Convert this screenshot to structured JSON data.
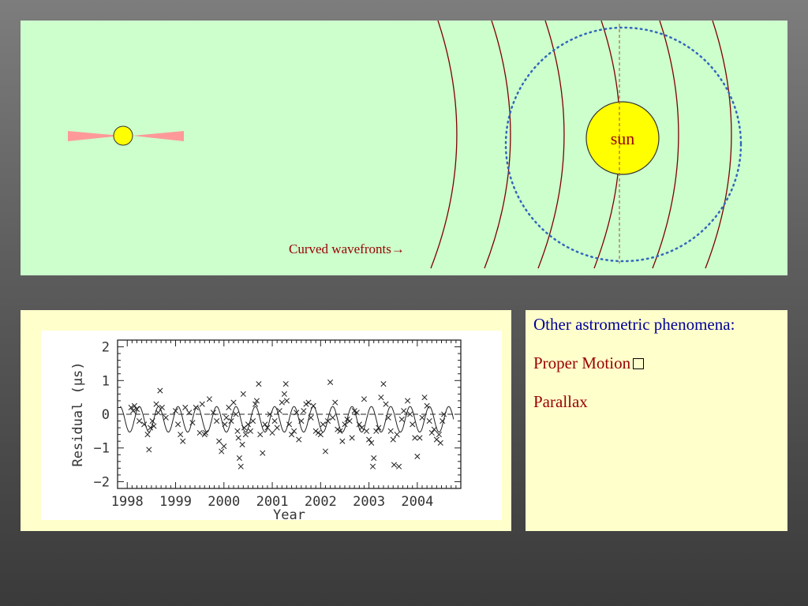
{
  "top_panel": {
    "wavefront_label": "Curved wavefronts→",
    "sun_label": "sun",
    "colors": {
      "background": "#ccffcc",
      "wavefronts": "#800000",
      "sun_fill": "#ffff00",
      "orbit": "#3366bb",
      "source_fans": "#ff9999",
      "source_fill": "#ffff00"
    }
  },
  "plot": {
    "ylabel": "Residual (μs)",
    "xlabel": "Year",
    "x_ticks": [
      "1998",
      "1999",
      "2000",
      "2001",
      "2002",
      "2003",
      "2004"
    ],
    "y_ticks": [
      "2",
      "1",
      "0",
      "−1",
      "−2"
    ]
  },
  "right_panel": {
    "heading": "Other astrometric phenomena:",
    "items": [
      "Proper Motion",
      "Parallax"
    ]
  },
  "chart_data": {
    "type": "scatter",
    "xlabel": "Year",
    "ylabel": "Residual (μs)",
    "xlim": [
      1997.8,
      2004.9
    ],
    "ylim": [
      -2.2,
      2.2
    ],
    "x_ticks": [
      1998,
      1999,
      2000,
      2001,
      2002,
      2003,
      2004
    ],
    "y_ticks": [
      2,
      1,
      0,
      -1,
      -2
    ],
    "grid": false,
    "reference_line_y": 0,
    "series": [
      {
        "marker": "x",
        "points": [
          [
            1998.08,
            0.2
          ],
          [
            1998.12,
            0.1
          ],
          [
            1998.15,
            0.25
          ],
          [
            1998.2,
            0.15
          ],
          [
            1998.25,
            -0.2
          ],
          [
            1998.35,
            -0.3
          ],
          [
            1998.42,
            -0.6
          ],
          [
            1998.45,
            -1.05
          ],
          [
            1998.48,
            -0.4
          ],
          [
            1998.52,
            -0.2
          ],
          [
            1998.55,
            -0.35
          ],
          [
            1998.6,
            0.3
          ],
          [
            1998.64,
            0.05
          ],
          [
            1998.68,
            0.7
          ],
          [
            1998.72,
            0.2
          ],
          [
            1998.8,
            -0.1
          ],
          [
            1999.0,
            0.1
          ],
          [
            1999.05,
            -0.3
          ],
          [
            1999.1,
            -0.6
          ],
          [
            1999.15,
            -0.8
          ],
          [
            1999.2,
            0.2
          ],
          [
            1999.28,
            0.05
          ],
          [
            1999.35,
            -0.25
          ],
          [
            1999.42,
            0.2
          ],
          [
            1999.5,
            -0.55
          ],
          [
            1999.55,
            0.3
          ],
          [
            1999.6,
            -0.6
          ],
          [
            1999.62,
            -0.55
          ],
          [
            1999.7,
            0.45
          ],
          [
            1999.78,
            0.05
          ],
          [
            1999.85,
            -0.2
          ],
          [
            1999.9,
            -0.8
          ],
          [
            1999.95,
            -1.1
          ],
          [
            2000.0,
            -0.95
          ],
          [
            2000.02,
            -0.3
          ],
          [
            2000.05,
            -0.1
          ],
          [
            2000.1,
            0.2
          ],
          [
            2000.15,
            -0.2
          ],
          [
            2000.2,
            0.35
          ],
          [
            2000.25,
            0.0
          ],
          [
            2000.28,
            -0.5
          ],
          [
            2000.3,
            -0.7
          ],
          [
            2000.32,
            -1.3
          ],
          [
            2000.35,
            -1.55
          ],
          [
            2000.38,
            -0.9
          ],
          [
            2000.4,
            0.6
          ],
          [
            2000.42,
            -0.4
          ],
          [
            2000.45,
            -0.6
          ],
          [
            2000.5,
            -0.3
          ],
          [
            2000.55,
            -0.5
          ],
          [
            2000.6,
            -0.2
          ],
          [
            2000.65,
            0.3
          ],
          [
            2000.68,
            0.4
          ],
          [
            2000.72,
            0.9
          ],
          [
            2000.75,
            -0.6
          ],
          [
            2000.8,
            -1.15
          ],
          [
            2000.85,
            -0.3
          ],
          [
            2000.9,
            -0.4
          ],
          [
            2000.95,
            0.0
          ],
          [
            2001.0,
            -0.55
          ],
          [
            2001.05,
            -0.2
          ],
          [
            2001.1,
            -0.4
          ],
          [
            2001.15,
            0.1
          ],
          [
            2001.2,
            0.35
          ],
          [
            2001.25,
            0.6
          ],
          [
            2001.28,
            0.9
          ],
          [
            2001.3,
            0.4
          ],
          [
            2001.35,
            -0.3
          ],
          [
            2001.4,
            -0.6
          ],
          [
            2001.45,
            -0.5
          ],
          [
            2001.5,
            0.05
          ],
          [
            2001.55,
            -0.75
          ],
          [
            2001.6,
            -0.2
          ],
          [
            2001.65,
            0.1
          ],
          [
            2001.7,
            0.3
          ],
          [
            2001.75,
            0.35
          ],
          [
            2001.8,
            -0.1
          ],
          [
            2001.85,
            0.25
          ],
          [
            2001.9,
            -0.5
          ],
          [
            2001.95,
            -0.55
          ],
          [
            2002.0,
            -0.6
          ],
          [
            2002.05,
            -0.3
          ],
          [
            2002.1,
            -1.1
          ],
          [
            2002.15,
            -0.2
          ],
          [
            2002.2,
            0.95
          ],
          [
            2002.25,
            -0.1
          ],
          [
            2002.3,
            0.35
          ],
          [
            2002.35,
            -0.45
          ],
          [
            2002.4,
            -0.5
          ],
          [
            2002.45,
            -0.8
          ],
          [
            2002.5,
            -0.3
          ],
          [
            2002.55,
            -0.15
          ],
          [
            2002.6,
            -0.2
          ],
          [
            2002.65,
            -0.7
          ],
          [
            2002.7,
            0.1
          ],
          [
            2002.75,
            0.05
          ],
          [
            2002.8,
            -0.3
          ],
          [
            2002.85,
            -0.4
          ],
          [
            2002.9,
            0.45
          ],
          [
            2002.95,
            -0.5
          ],
          [
            2003.0,
            -0.75
          ],
          [
            2003.05,
            -0.85
          ],
          [
            2003.08,
            -1.55
          ],
          [
            2003.1,
            -1.3
          ],
          [
            2003.15,
            -0.5
          ],
          [
            2003.2,
            -0.4
          ],
          [
            2003.25,
            0.5
          ],
          [
            2003.3,
            0.9
          ],
          [
            2003.35,
            0.3
          ],
          [
            2003.4,
            -0.1
          ],
          [
            2003.45,
            -0.5
          ],
          [
            2003.5,
            -0.75
          ],
          [
            2003.52,
            -1.5
          ],
          [
            2003.58,
            -0.6
          ],
          [
            2003.62,
            -1.55
          ],
          [
            2003.68,
            -0.15
          ],
          [
            2003.72,
            0.1
          ],
          [
            2003.8,
            0.4
          ],
          [
            2003.85,
            0.0
          ],
          [
            2003.9,
            -0.3
          ],
          [
            2003.95,
            -0.7
          ],
          [
            2004.0,
            -1.25
          ],
          [
            2004.05,
            -0.7
          ],
          [
            2004.1,
            -0.1
          ],
          [
            2004.15,
            0.5
          ],
          [
            2004.2,
            0.25
          ],
          [
            2004.25,
            -0.2
          ],
          [
            2004.3,
            -0.55
          ],
          [
            2004.35,
            -0.45
          ],
          [
            2004.4,
            -0.75
          ],
          [
            2004.45,
            -0.6
          ],
          [
            2004.48,
            -0.85
          ],
          [
            2004.52,
            -0.2
          ],
          [
            2004.55,
            0.0
          ]
        ]
      },
      {
        "type": "line",
        "function": "periodic fit",
        "amplitude": 0.38,
        "offset": -0.15,
        "period_years": 0.4,
        "phase_year": 1998.15,
        "x_range": [
          1997.85,
          2004.75
        ]
      }
    ]
  }
}
